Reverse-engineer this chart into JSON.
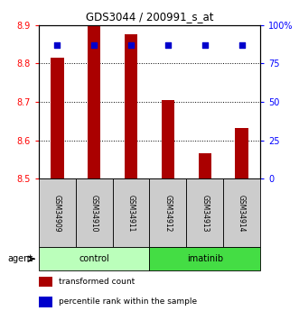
{
  "title": "GDS3044 / 200991_s_at",
  "samples": [
    "GSM34909",
    "GSM34910",
    "GSM34911",
    "GSM34912",
    "GSM34913",
    "GSM34914"
  ],
  "groups": [
    "control",
    "control",
    "control",
    "imatinib",
    "imatinib",
    "imatinib"
  ],
  "bar_values": [
    8.815,
    8.9,
    8.875,
    8.705,
    8.567,
    8.632
  ],
  "bar_base": 8.5,
  "percentile_values": [
    87,
    87,
    87,
    87,
    87,
    87
  ],
  "bar_color": "#aa0000",
  "dot_color": "#0000cc",
  "ylim_left": [
    8.5,
    8.9
  ],
  "ylim_right": [
    0,
    100
  ],
  "yticks_left": [
    8.5,
    8.6,
    8.7,
    8.8,
    8.9
  ],
  "yticks_right": [
    0,
    25,
    50,
    75,
    100
  ],
  "ytick_labels_right": [
    "0",
    "25",
    "50",
    "75",
    "100%"
  ],
  "control_color": "#bbffbb",
  "imatinib_color": "#44dd44",
  "agent_label": "agent",
  "legend_bar_label": "transformed count",
  "legend_dot_label": "percentile rank within the sample",
  "background_color": "#ffffff",
  "sample_box_color": "#cccccc"
}
